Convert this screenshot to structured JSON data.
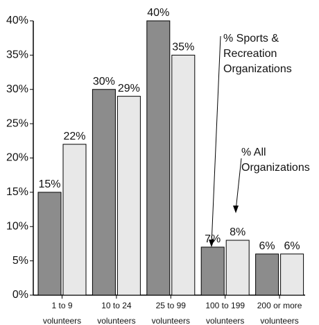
{
  "chart_data": {
    "type": "bar",
    "categories": [
      "1 to 9 volunteers",
      "10 to 24 volunteers",
      "25 to 99 volunteers",
      "100 to 199 volunteers",
      "200 or more volunteers"
    ],
    "series": [
      {
        "name": "% Sports & Recreation Organizations",
        "color": "#8c8c8c",
        "values": [
          15,
          30,
          40,
          7,
          6
        ],
        "value_labels": [
          "15%",
          "30%",
          "40%",
          "7%",
          "6%"
        ]
      },
      {
        "name": "% All Organizations",
        "color": "#e8e8e8",
        "values": [
          22,
          29,
          35,
          8,
          6
        ],
        "value_labels": [
          "22%",
          "29%",
          "35%",
          "8%",
          "6%"
        ]
      }
    ],
    "ylim": [
      0,
      40
    ],
    "yticks": [
      {
        "value": 0,
        "label": "0%"
      },
      {
        "value": 5,
        "label": "5%"
      },
      {
        "value": 10,
        "label": "10%"
      },
      {
        "value": 15,
        "label": "15%"
      },
      {
        "value": 20,
        "label": "20%"
      },
      {
        "value": 25,
        "label": "25%"
      },
      {
        "value": 30,
        "label": "30%"
      },
      {
        "value": 35,
        "label": "35%"
      },
      {
        "value": 40,
        "label": "40%"
      }
    ]
  }
}
